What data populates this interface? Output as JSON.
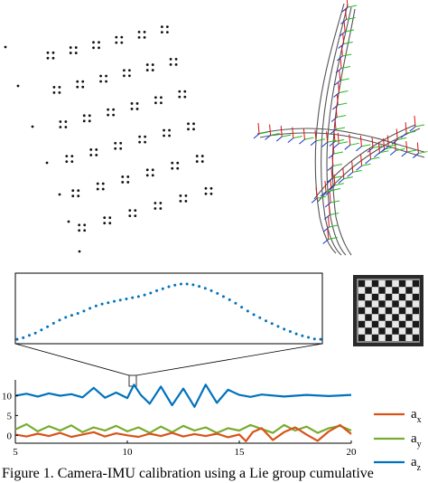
{
  "caption": "Figure 1. Camera-IMU calibration using a Lie group cumulative",
  "bottom_plot": {
    "legend": [
      {
        "main": "a",
        "sub": "x",
        "color": "#d95319"
      },
      {
        "main": "a",
        "sub": "y",
        "color": "#77ac30"
      },
      {
        "main": "a",
        "sub": "z",
        "color": "#0072bd"
      }
    ]
  },
  "chart_data": [
    {
      "type": "line",
      "panel": "bottom",
      "x_ticks": [
        "5",
        "10",
        "15",
        "20"
      ],
      "y_ticks": [
        "10",
        "5",
        "0"
      ],
      "xlim": [
        5,
        20
      ],
      "ylim": [
        -2,
        14
      ],
      "series": [
        {
          "name": "a_z",
          "color": "#0072bd",
          "x": [
            5,
            5.5,
            6,
            6.5,
            7,
            7.5,
            8,
            8.5,
            9,
            9.5,
            10,
            10.3,
            10.6,
            11,
            11.5,
            12,
            12.5,
            13,
            13.5,
            14,
            14.5,
            15,
            15.5,
            16,
            17,
            18,
            19,
            20
          ],
          "values": [
            10,
            10.5,
            9.8,
            10.6,
            10,
            10.4,
            9.6,
            12,
            9.5,
            10.8,
            9.4,
            12.8,
            10.2,
            8,
            12.3,
            7.6,
            11.8,
            7.2,
            12.8,
            8.2,
            11.5,
            10.2,
            9.7,
            10.3,
            9.8,
            10.2,
            9.9,
            10.2
          ]
        },
        {
          "name": "a_y",
          "color": "#77ac30",
          "x": [
            5,
            5.5,
            6,
            6.5,
            7,
            7.5,
            8,
            8.5,
            9,
            9.5,
            10,
            10.5,
            11,
            11.5,
            12,
            12.5,
            13,
            13.5,
            14,
            14.5,
            15,
            15.5,
            16,
            16.5,
            17,
            17.5,
            18,
            18.5,
            19,
            19.5,
            20
          ],
          "values": [
            1.5,
            2.8,
            1,
            2.3,
            1.2,
            2.5,
            0.8,
            2,
            1.2,
            2.4,
            1,
            2,
            0.6,
            2.2,
            0.8,
            2.4,
            1.2,
            2,
            0.6,
            1.8,
            1.2,
            2.6,
            1.6,
            0.6,
            2.6,
            1.2,
            2.2,
            0.6,
            1.8,
            2.4,
            1.2
          ]
        },
        {
          "name": "a_x",
          "color": "#d95319",
          "x": [
            5,
            5.5,
            6,
            6.5,
            7,
            7.5,
            8,
            8.5,
            9,
            9.5,
            10,
            10.5,
            11,
            11.5,
            12,
            12.5,
            13,
            13.5,
            14,
            14.5,
            15,
            15.3,
            15.6,
            16,
            16.5,
            17,
            17.5,
            18,
            18.5,
            19,
            19.5,
            20
          ],
          "values": [
            0.2,
            -0.3,
            0.4,
            -0.2,
            0.6,
            -0.4,
            0.2,
            0.8,
            -0.3,
            0.5,
            0,
            -0.4,
            0.4,
            -0.2,
            0.6,
            -0.3,
            0.3,
            -0.2,
            0.4,
            -0.5,
            0.2,
            -1.5,
            0.8,
            1.8,
            -1.2,
            0.8,
            2,
            0.2,
            -1.4,
            1,
            2.6,
            0.3
          ]
        }
      ]
    },
    {
      "type": "scatter",
      "panel": "zoom-inset",
      "x": [
        0,
        2,
        4,
        6,
        8,
        10,
        12,
        14,
        16,
        18,
        20,
        22,
        24,
        26,
        28,
        30,
        32,
        34,
        36,
        38,
        40,
        42,
        44,
        46,
        48,
        50,
        52,
        54,
        56,
        58,
        60,
        62,
        64,
        66,
        68,
        70,
        72,
        74,
        76,
        78,
        80,
        82,
        84,
        86,
        88,
        90,
        92,
        94,
        96,
        98,
        100
      ],
      "values": [
        0.2,
        0.6,
        1.2,
        1.8,
        2.6,
        3.4,
        4.3,
        5.1,
        5.8,
        6.3,
        6.8,
        7.4,
        8.1,
        8.7,
        9.2,
        9.5,
        9.9,
        10.2,
        10.5,
        10.8,
        11.1,
        11.5,
        12,
        12.6,
        13.1,
        13.6,
        14,
        14.3,
        14.3,
        14.1,
        13.7,
        13.2,
        12.6,
        11.9,
        11.1,
        10.3,
        9.4,
        8.4,
        7.4,
        6.5,
        5.7,
        4.9,
        4.2,
        3.5,
        2.8,
        2.2,
        1.6,
        1.1,
        0.7,
        0.3,
        0.2
      ]
    }
  ]
}
